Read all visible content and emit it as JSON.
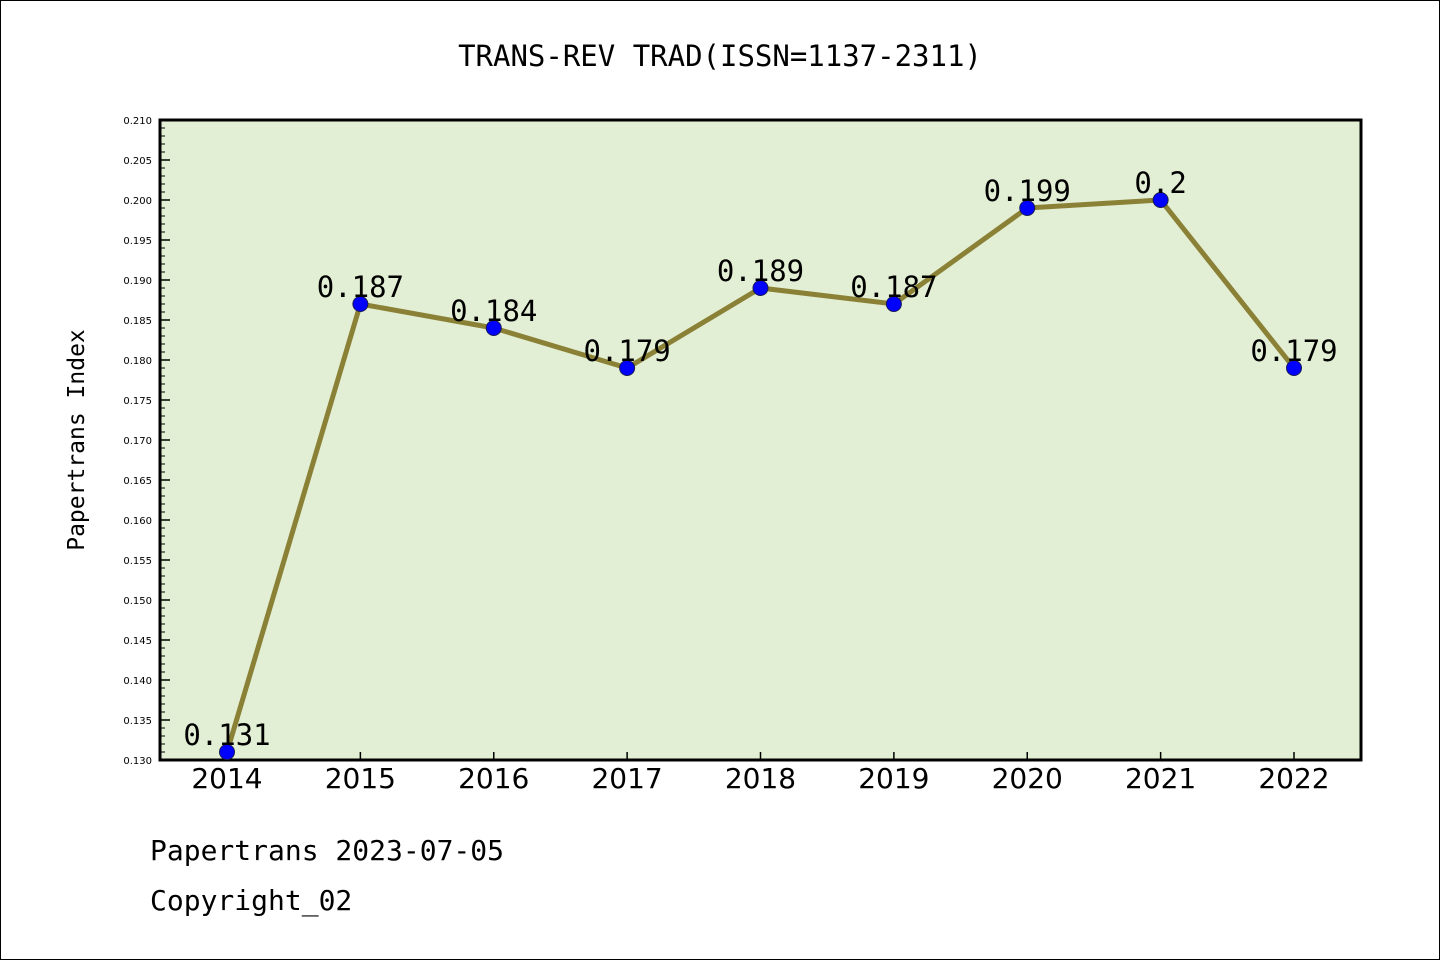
{
  "chart_data": {
    "type": "line",
    "title": "TRANS-REV TRAD(ISSN=1137-2311)",
    "xlabel": "",
    "ylabel": "Papertrans Index",
    "categories": [
      "2014",
      "2015",
      "2016",
      "2017",
      "2018",
      "2019",
      "2020",
      "2021",
      "2022"
    ],
    "series": [
      {
        "values": [
          0.131,
          0.187,
          0.184,
          0.179,
          0.189,
          0.187,
          0.199,
          0.2,
          0.179
        ],
        "data_labels": [
          "0.131",
          "0.187",
          "0.184",
          "0.179",
          "0.189",
          "0.187",
          "0.199",
          "0.2",
          "0.179"
        ]
      }
    ],
    "ylim": [
      0.13,
      0.21
    ],
    "y_ticks": [
      "0.130",
      "0.135",
      "0.140",
      "0.145",
      "0.150",
      "0.155",
      "0.160",
      "0.165",
      "0.170",
      "0.175",
      "0.180",
      "0.185",
      "0.190",
      "0.195",
      "0.200",
      "0.205",
      "0.210"
    ],
    "grid": false,
    "legend": "none",
    "colors": {
      "plot_background": "#e2efd4",
      "line": "#8b8136",
      "marker": "#0000ff"
    }
  },
  "footer": {
    "line1": "Papertrans 2023-07-05",
    "line2": "Copyright_02"
  }
}
